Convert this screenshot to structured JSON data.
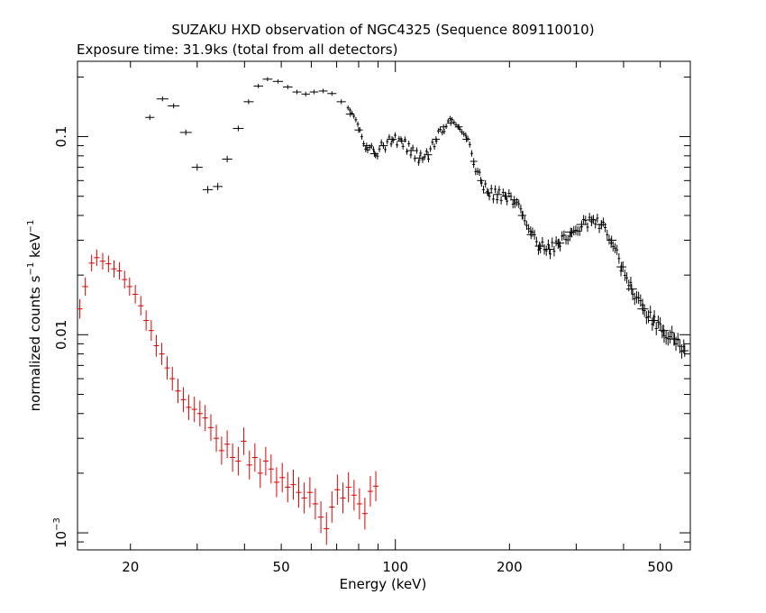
{
  "chart_data": {
    "type": "scatter",
    "title": "SUZAKU HXD observation of NGC4325 (Sequence 809110010)",
    "subtitle": "Exposure time: 31.9ks (total from all detectors)",
    "xlabel": "Energy (keV)",
    "ylabel_main": "normalized counts s",
    "ylabel_sup1": "−1",
    "ylabel_mid": " keV",
    "ylabel_sup2": "−1",
    "xscale": "log",
    "yscale": "log",
    "xlim": [
      14.5,
      600
    ],
    "ylim": [
      0.00082,
      0.24
    ],
    "grid": false,
    "x_tick_labels": [
      {
        "value": 20,
        "label": "20"
      },
      {
        "value": 50,
        "label": "50"
      },
      {
        "value": 100,
        "label": "100"
      },
      {
        "value": 200,
        "label": "200"
      },
      {
        "value": 500,
        "label": "500"
      }
    ],
    "y_tick_labels": [
      {
        "value": 0.1,
        "label": "0.1"
      },
      {
        "value": 0.01,
        "label": "0.01"
      },
      {
        "value": 0.001,
        "label": "10",
        "sup": "−3"
      }
    ],
    "series": [
      {
        "color": "#000000",
        "points": [
          [
            22.5,
            0.125
          ],
          [
            24.3,
            0.155
          ],
          [
            26.0,
            0.143
          ],
          [
            28.0,
            0.105
          ],
          [
            30.0,
            0.07
          ],
          [
            32.0,
            0.054
          ],
          [
            34.0,
            0.056
          ],
          [
            36.0,
            0.077
          ],
          [
            38.5,
            0.11
          ],
          [
            41.0,
            0.15
          ],
          [
            43.5,
            0.18
          ],
          [
            46.0,
            0.195
          ],
          [
            49.0,
            0.19
          ],
          [
            52.0,
            0.178
          ],
          [
            55.0,
            0.168
          ],
          [
            58.0,
            0.164
          ],
          [
            61.0,
            0.168
          ],
          [
            64.5,
            0.17
          ],
          [
            68.0,
            0.165
          ],
          [
            72.0,
            0.15
          ],
          [
            76.0,
            0.13
          ],
          [
            80.0,
            0.108
          ],
          [
            84.0,
            0.09
          ],
          [
            88.0,
            0.082
          ],
          [
            93.0,
            0.09
          ],
          [
            98.0,
            0.097
          ],
          [
            104.0,
            0.095
          ],
          [
            110.0,
            0.085
          ],
          [
            116.0,
            0.078
          ],
          [
            122.0,
            0.081
          ],
          [
            128.0,
            0.097
          ],
          [
            134.0,
            0.112
          ],
          [
            140.0,
            0.117
          ],
          [
            147.0,
            0.112
          ],
          [
            154.0,
            0.097
          ],
          [
            161.0,
            0.075
          ],
          [
            168.0,
            0.06
          ],
          [
            176.0,
            0.052
          ],
          [
            186.0,
            0.051
          ],
          [
            196.0,
            0.05
          ],
          [
            206.0,
            0.048
          ],
          [
            216.0,
            0.04
          ],
          [
            228.0,
            0.032
          ],
          [
            240.0,
            0.028
          ],
          [
            255.0,
            0.027
          ],
          [
            270.0,
            0.029
          ],
          [
            290.0,
            0.033
          ],
          [
            310.0,
            0.036
          ],
          [
            330.0,
            0.038
          ],
          [
            350.0,
            0.036
          ],
          [
            372.0,
            0.03
          ],
          [
            395.0,
            0.022
          ],
          [
            420.0,
            0.017
          ],
          [
            450.0,
            0.0135
          ],
          [
            480.0,
            0.0118
          ],
          [
            510.0,
            0.0105
          ],
          [
            545.0,
            0.0095
          ],
          [
            580.0,
            0.0083
          ]
        ]
      },
      {
        "color": "#e00000",
        "points": [
          [
            14.7,
            0.0135
          ],
          [
            15.2,
            0.0175
          ],
          [
            15.8,
            0.023
          ],
          [
            16.3,
            0.0245
          ],
          [
            16.9,
            0.0235
          ],
          [
            17.5,
            0.0228
          ],
          [
            18.1,
            0.0215
          ],
          [
            18.7,
            0.021
          ],
          [
            19.3,
            0.019
          ],
          [
            19.9,
            0.0175
          ],
          [
            20.6,
            0.016
          ],
          [
            21.3,
            0.014
          ],
          [
            22.0,
            0.0118
          ],
          [
            22.7,
            0.0105
          ],
          [
            23.4,
            0.0088
          ],
          [
            24.2,
            0.008
          ],
          [
            25.0,
            0.0068
          ],
          [
            25.8,
            0.006
          ],
          [
            26.7,
            0.0052
          ],
          [
            27.6,
            0.0047
          ],
          [
            28.5,
            0.0043
          ],
          [
            29.5,
            0.0042
          ],
          [
            30.5,
            0.004
          ],
          [
            31.5,
            0.0038
          ],
          [
            32.6,
            0.0034
          ],
          [
            33.7,
            0.003
          ],
          [
            34.8,
            0.0026
          ],
          [
            36.0,
            0.0028
          ],
          [
            37.2,
            0.0024
          ],
          [
            38.5,
            0.0023
          ],
          [
            39.8,
            0.0029
          ],
          [
            41.2,
            0.0022
          ],
          [
            42.6,
            0.0024
          ],
          [
            44.0,
            0.002
          ],
          [
            45.5,
            0.0023
          ],
          [
            47.0,
            0.0021
          ],
          [
            48.6,
            0.0018
          ],
          [
            50.3,
            0.0019
          ],
          [
            52.0,
            0.0017
          ],
          [
            53.8,
            0.00175
          ],
          [
            55.6,
            0.0016
          ],
          [
            57.5,
            0.0015
          ],
          [
            59.5,
            0.0016
          ],
          [
            61.5,
            0.0014
          ],
          [
            63.6,
            0.0012
          ],
          [
            65.8,
            0.00105
          ],
          [
            68.0,
            0.00135
          ],
          [
            70.3,
            0.00165
          ],
          [
            72.7,
            0.0015
          ],
          [
            75.2,
            0.0017
          ],
          [
            77.8,
            0.00155
          ],
          [
            80.4,
            0.0014
          ],
          [
            83.1,
            0.00125
          ],
          [
            85.9,
            0.00162
          ],
          [
            88.8,
            0.00172
          ]
        ]
      }
    ]
  }
}
